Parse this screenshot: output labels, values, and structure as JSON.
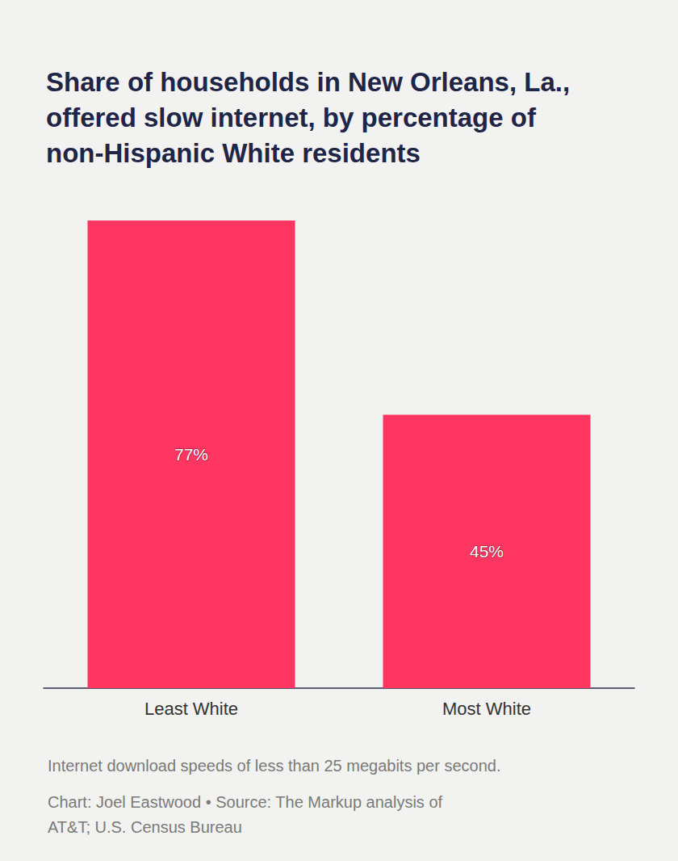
{
  "chart_data": {
    "type": "bar",
    "title": "Share of households in New Orleans, La., offered slow internet, by percentage of non-Hispanic White residents",
    "categories": [
      "Least White",
      "Most White"
    ],
    "values": [
      77,
      45
    ],
    "value_labels": [
      "77%",
      "45%"
    ],
    "color": "#ff3562",
    "ylim": [
      0,
      77
    ],
    "grid": false,
    "data_labels": true,
    "tick_labels": "x",
    "note": "Internet download speeds of less than 25 megabits per second.",
    "source": "Chart: Joel Eastwood • Source: The Markup analysis of AT&T; U.S. Census Bureau"
  }
}
